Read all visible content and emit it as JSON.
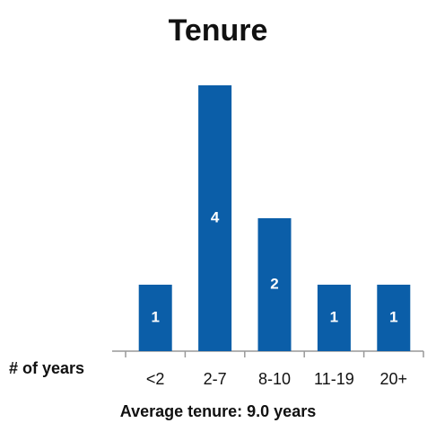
{
  "chart_data": {
    "type": "bar",
    "title": "Tenure",
    "x_label": "# of years",
    "annotation": "Average tenure: 9.0 years",
    "categories": [
      "<2",
      "2-7",
      "8-10",
      "11-19",
      "20+"
    ],
    "values": [
      1,
      4,
      2,
      1,
      1
    ],
    "color": "#0b5ea8"
  }
}
